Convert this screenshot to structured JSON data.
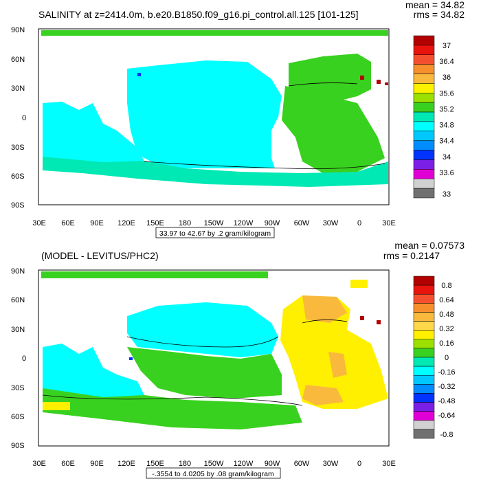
{
  "panels": [
    {
      "title": "SALINITY at z=2414.0m, b.e20.B1850.f09_g16.pi_control.all.125 [101-125]",
      "stats": {
        "mean": "mean = 34.82",
        "rms": "rms = 34.82"
      },
      "contour_info": "33.97 to 42.67 by .2 gram/kilogram",
      "colorbar_labels": [
        "37",
        "36.4",
        "36",
        "35.6",
        "35.2",
        "34.8",
        "34.4",
        "34",
        "33.6",
        "33"
      ],
      "colorbar_colors": [
        "#b30000",
        "#e8130d",
        "#f4502f",
        "#f78f2d",
        "#f9b93d",
        "#fff000",
        "#9be000",
        "#39d11f",
        "#00e8b4",
        "#00ffff",
        "#00c8ff",
        "#008cff",
        "#0033ff",
        "#7a1fe6",
        "#e000d6",
        "#d1d1d1",
        "#707070"
      ]
    },
    {
      "title": "(MODEL - LEVITUS/PHC2)",
      "stats": {
        "mean": "mean = 0.07573",
        "rms": "rms = 0.2147"
      },
      "contour_info": "-.3554 to 4.0205 by .08 gram/kilogram",
      "colorbar_labels": [
        "0.8",
        "0.64",
        "0.48",
        "0.32",
        "0.16",
        "0",
        "-0.16",
        "-0.32",
        "-0.48",
        "-0.64",
        "-0.8"
      ],
      "colorbar_colors": [
        "#b30000",
        "#e8130d",
        "#f4502f",
        "#f78f2d",
        "#f9b93d",
        "#ffd84a",
        "#fff000",
        "#9be000",
        "#39d11f",
        "#00e8b4",
        "#00ffff",
        "#00c8ff",
        "#008cff",
        "#0033ff",
        "#7a1fe6",
        "#e000d6",
        "#d1d1d1",
        "#707070"
      ]
    }
  ],
  "lat_labels": [
    "90N",
    "60N",
    "30N",
    "0",
    "30S",
    "60S",
    "90S"
  ],
  "lon_labels": [
    "30E",
    "60E",
    "90E",
    "120E",
    "150E",
    "180",
    "150W",
    "120W",
    "90W",
    "60W",
    "30W",
    "0",
    "30E"
  ],
  "colors": {
    "land": "#ffffff",
    "sea_fill_top": "#00ffff",
    "sea_fill_bottom_ref": "#39d11f"
  }
}
